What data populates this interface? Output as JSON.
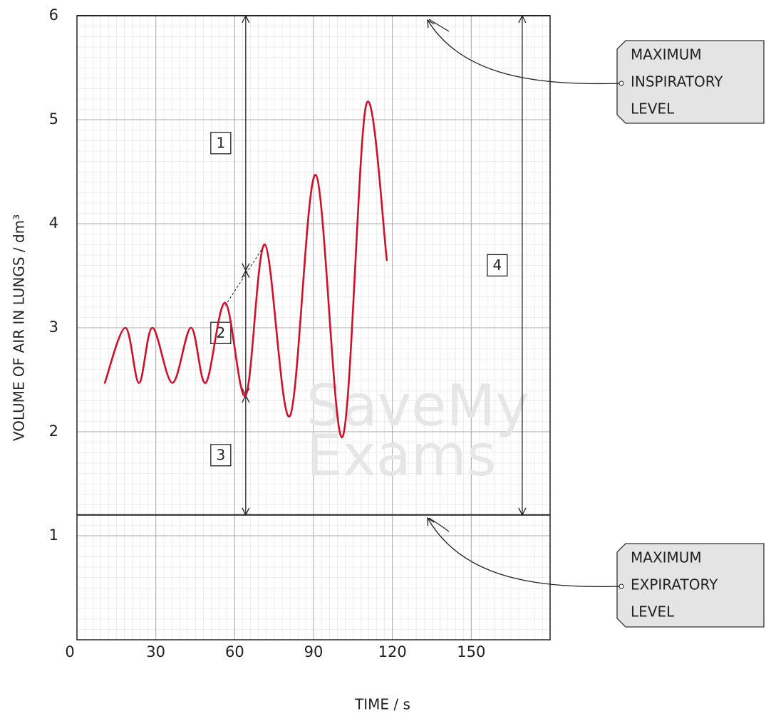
{
  "chart_data": {
    "type": "line",
    "xlabel": "TIME / s",
    "ylabel": "VOLUME OF AIR IN LUNGS / dm³",
    "xlim": [
      0,
      180
    ],
    "ylim": [
      0,
      6
    ],
    "xticks": [
      0,
      30,
      60,
      90,
      120,
      150
    ],
    "yticks": [
      1,
      2,
      3,
      4,
      5,
      6
    ],
    "grid": true,
    "series": [
      {
        "color": "#d0102a",
        "x": [
          10.6,
          18.4,
          23.6,
          28.7,
          36.3,
          43.4,
          49,
          56.4,
          64.2,
          71.5,
          81,
          90.8,
          101,
          110,
          117.9
        ],
        "values": [
          2.47,
          3.0,
          2.47,
          3.0,
          2.47,
          3.0,
          2.47,
          3.24,
          2.35,
          3.8,
          2.15,
          4.47,
          1.95,
          5.14,
          3.65
        ]
      }
    ],
    "levels": [
      {
        "label": [
          "MAXIMUM",
          "INSPIRATORY",
          "LEVEL"
        ],
        "value": 6
      },
      {
        "label": [
          "MAXIMUM",
          "EXPIRATORY",
          "LEVEL"
        ],
        "value": 1.2
      }
    ],
    "annotations": [
      {
        "label": "1",
        "x": 64.2,
        "y": [
          3.55,
          6
        ]
      },
      {
        "label": "2",
        "x": 64.2,
        "y": [
          2.35,
          3.55
        ]
      },
      {
        "label": "3",
        "x": 64.2,
        "y": [
          1.2,
          2.35
        ]
      },
      {
        "label": "4",
        "x": 169.4,
        "y": [
          1.2,
          6
        ]
      }
    ],
    "watermark": [
      "SaveMy",
      "Exams"
    ]
  }
}
